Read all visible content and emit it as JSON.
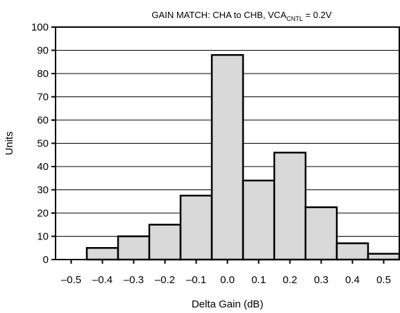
{
  "chart_data": {
    "type": "bar",
    "title": {
      "prefix": "GAIN MATCH: CHA to CHB, VCA",
      "subscript": "CNTL",
      "suffix": " = 0.2V"
    },
    "xlabel": "Delta Gain (dB)",
    "ylabel": "Units",
    "ylim": [
      0,
      100
    ],
    "yticks": [
      0,
      10,
      20,
      30,
      40,
      50,
      60,
      70,
      80,
      90,
      100
    ],
    "xlim": [
      -0.55,
      0.55
    ],
    "xticks": [
      {
        "value": -0.5,
        "label": "–0.5"
      },
      {
        "value": -0.4,
        "label": "–0.4"
      },
      {
        "value": -0.3,
        "label": "–0.3"
      },
      {
        "value": -0.2,
        "label": "–0.2"
      },
      {
        "value": -0.1,
        "label": "–0.1"
      },
      {
        "value": 0.0,
        "label": "0.0"
      },
      {
        "value": 0.1,
        "label": "0.1"
      },
      {
        "value": 0.2,
        "label": "0.2"
      },
      {
        "value": 0.3,
        "label": "0.3"
      },
      {
        "value": 0.4,
        "label": "0.4"
      },
      {
        "value": 0.5,
        "label": "0.5"
      }
    ],
    "grid": "horizontal",
    "bar_color": "#d9d9d9",
    "edge_color": "#000000",
    "bins": [
      {
        "from": -0.55,
        "to": -0.45,
        "value": 0
      },
      {
        "from": -0.45,
        "to": -0.35,
        "value": 5
      },
      {
        "from": -0.35,
        "to": -0.25,
        "value": 10
      },
      {
        "from": -0.25,
        "to": -0.15,
        "value": 15
      },
      {
        "from": -0.15,
        "to": -0.05,
        "value": 27.5
      },
      {
        "from": -0.05,
        "to": 0.05,
        "value": 88
      },
      {
        "from": 0.05,
        "to": 0.15,
        "value": 34
      },
      {
        "from": 0.15,
        "to": 0.25,
        "value": 46
      },
      {
        "from": 0.25,
        "to": 0.35,
        "value": 22.5
      },
      {
        "from": 0.35,
        "to": 0.45,
        "value": 7
      },
      {
        "from": 0.45,
        "to": 0.55,
        "value": 2.5
      }
    ]
  }
}
